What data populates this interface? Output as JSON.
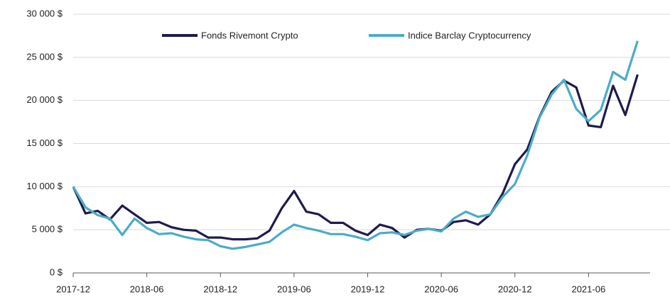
{
  "chart_data": {
    "type": "line",
    "categories": [
      "2017-12",
      null,
      null,
      null,
      null,
      null,
      "2018-06",
      null,
      null,
      null,
      null,
      null,
      "2018-12",
      null,
      null,
      null,
      null,
      null,
      "2019-06",
      null,
      null,
      null,
      null,
      null,
      "2019-12",
      null,
      null,
      null,
      null,
      null,
      "2020-06",
      null,
      null,
      null,
      null,
      null,
      "2020-12",
      null,
      null,
      null,
      null,
      null,
      "2021-06",
      null,
      null,
      null,
      null
    ],
    "series": [
      {
        "name": "Fonds Rivemont Crypto",
        "color": "#1f1b4e",
        "values": [
          10000,
          6900,
          7200,
          6200,
          7800,
          6800,
          5800,
          5900,
          5300,
          5000,
          4900,
          4100,
          4100,
          3900,
          3900,
          4000,
          4900,
          7500,
          9500,
          7100,
          6800,
          5800,
          5800,
          4900,
          4400,
          5600,
          5200,
          4100,
          5000,
          5100,
          4900,
          5900,
          6100,
          5600,
          6800,
          9200,
          12600,
          14300,
          18100,
          21000,
          22300,
          21500,
          17100,
          16900,
          21700,
          18300,
          23000
        ]
      },
      {
        "name": "Indice Barclay Cryptocurrency",
        "color": "#4bacc6",
        "values": [
          10000,
          7600,
          6700,
          6300,
          4400,
          6300,
          5200,
          4500,
          4600,
          4200,
          3900,
          3800,
          3100,
          2800,
          3000,
          3300,
          3600,
          4700,
          5600,
          5200,
          4900,
          4500,
          4500,
          4200,
          3800,
          4600,
          4700,
          4400,
          4900,
          5100,
          4800,
          6300,
          7100,
          6500,
          6800,
          8800,
          10300,
          13600,
          18000,
          20700,
          22400,
          19000,
          17600,
          18900,
          23300,
          22400,
          26900
        ]
      }
    ],
    "ylim": [
      0,
      30000
    ],
    "yticks": [
      {
        "value": 0,
        "label": "0 $"
      },
      {
        "value": 5000,
        "label": "5 000 $"
      },
      {
        "value": 10000,
        "label": "10 000 $"
      },
      {
        "value": 15000,
        "label": "15 000 $"
      },
      {
        "value": 20000,
        "label": "20 000 $"
      },
      {
        "value": 25000,
        "label": "25 000 $"
      },
      {
        "value": 30000,
        "label": "30 000 $"
      }
    ],
    "grid": true,
    "legend": "top"
  }
}
